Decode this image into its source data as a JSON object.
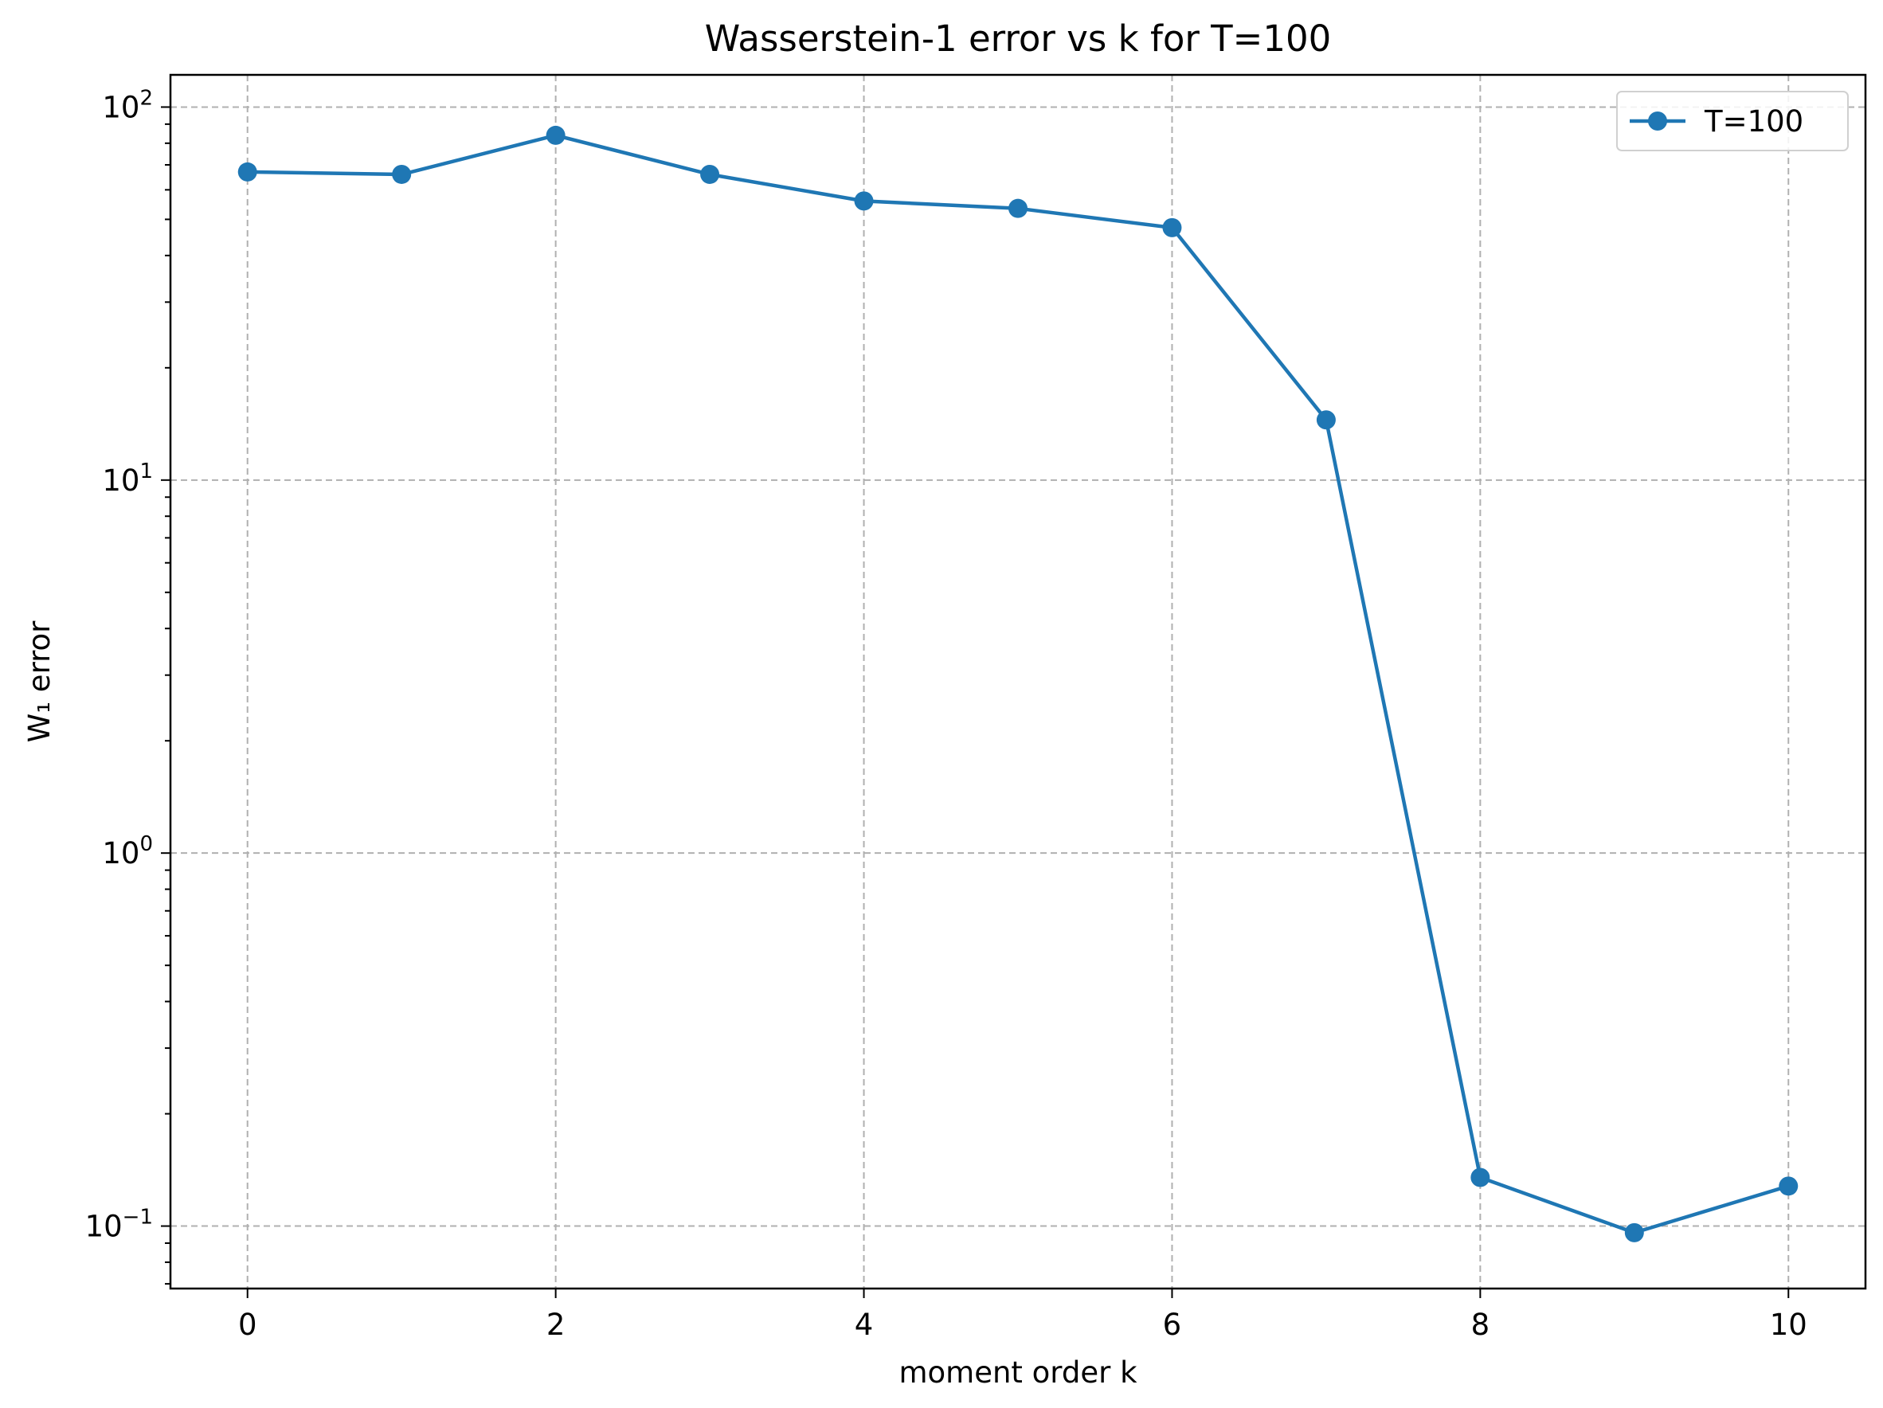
{
  "chart_data": {
    "type": "line",
    "title": "Wasserstein-1 error vs k for T=100",
    "xlabel": "moment order k",
    "ylabel": "W₁ error",
    "yscale": "log",
    "xlim": [
      -0.5,
      10.5
    ],
    "ylim": [
      0.068,
      122
    ],
    "grid": true,
    "legend_position": "top-right",
    "x_ticks": [
      0,
      2,
      4,
      6,
      8,
      10
    ],
    "x_tick_labels": [
      "0",
      "2",
      "4",
      "6",
      "8",
      "10"
    ],
    "y_ticks": [
      {
        "value": 100,
        "base": "10",
        "exponent": "2"
      },
      {
        "value": 10,
        "base": "10",
        "exponent": "1"
      },
      {
        "value": 1,
        "base": "10",
        "exponent": "0"
      },
      {
        "value": 0.1,
        "base": "10",
        "exponent": "−1"
      }
    ],
    "series": [
      {
        "name": "T=100",
        "color": "#1f77b4",
        "marker": "circle",
        "x": [
          0,
          1,
          2,
          3,
          4,
          5,
          6,
          7,
          8,
          9,
          10
        ],
        "y": [
          67,
          66,
          84,
          66,
          56,
          53.5,
          47.5,
          14.5,
          0.135,
          0.096,
          0.128
        ]
      }
    ]
  }
}
